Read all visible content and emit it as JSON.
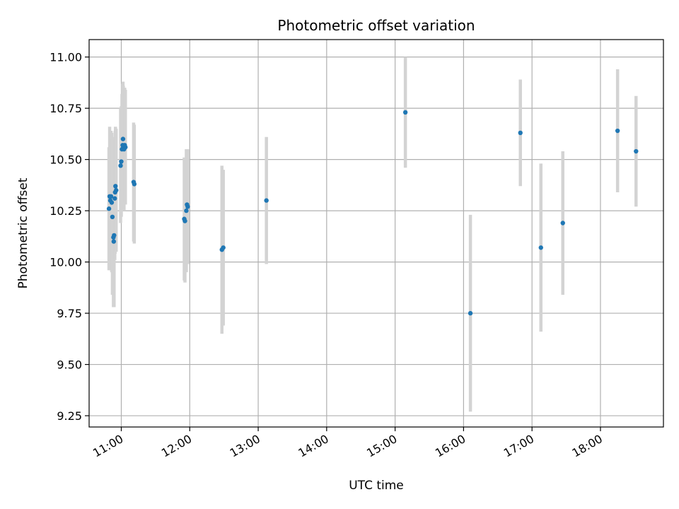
{
  "chart_data": {
    "type": "scatter",
    "title": "Photometric offset variation",
    "xlabel": "UTC time",
    "ylabel": "Photometric offset",
    "x_unit": "UTC hours",
    "xlim": [
      10.53,
      18.92
    ],
    "ylim": [
      9.195,
      11.085
    ],
    "grid": true,
    "legend": "none",
    "xticks": [
      {
        "value": 11,
        "label": "11:00"
      },
      {
        "value": 12,
        "label": "12:00"
      },
      {
        "value": 13,
        "label": "13:00"
      },
      {
        "value": 14,
        "label": "14:00"
      },
      {
        "value": 15,
        "label": "15:00"
      },
      {
        "value": 16,
        "label": "16:00"
      },
      {
        "value": 17,
        "label": "17:00"
      },
      {
        "value": 18,
        "label": "18:00"
      }
    ],
    "yticks": [
      {
        "value": 9.25,
        "label": "9.25"
      },
      {
        "value": 9.5,
        "label": "9.50"
      },
      {
        "value": 9.75,
        "label": "9.75"
      },
      {
        "value": 10.0,
        "label": "10.00"
      },
      {
        "value": 10.25,
        "label": "10.25"
      },
      {
        "value": 10.5,
        "label": "10.50"
      },
      {
        "value": 10.75,
        "label": "10.75"
      },
      {
        "value": 11.0,
        "label": "11.00"
      }
    ],
    "colors": {
      "point": "#1f77b4",
      "errorbar": "#d3d3d3",
      "grid": "#b0b0b0"
    },
    "points": [
      {
        "t": 10.82,
        "y": 10.26,
        "err": 0.3
      },
      {
        "t": 10.83,
        "y": 10.32,
        "err": 0.34
      },
      {
        "t": 10.84,
        "y": 10.3,
        "err": 0.34
      },
      {
        "t": 10.85,
        "y": 10.32,
        "err": 0.32
      },
      {
        "t": 10.86,
        "y": 10.29,
        "err": 0.34
      },
      {
        "t": 10.87,
        "y": 10.22,
        "err": 0.38
      },
      {
        "t": 10.885,
        "y": 10.12,
        "err": 0.34
      },
      {
        "t": 10.89,
        "y": 10.1,
        "err": 0.32
      },
      {
        "t": 10.895,
        "y": 10.13,
        "err": 0.35
      },
      {
        "t": 10.905,
        "y": 10.31,
        "err": 0.3
      },
      {
        "t": 10.91,
        "y": 10.34,
        "err": 0.3
      },
      {
        "t": 10.915,
        "y": 10.37,
        "err": 0.29
      },
      {
        "t": 10.925,
        "y": 10.35,
        "err": 0.3
      },
      {
        "t": 10.99,
        "y": 10.47,
        "err": 0.28
      },
      {
        "t": 11.0,
        "y": 10.49,
        "err": 0.27
      },
      {
        "t": 11.01,
        "y": 10.55,
        "err": 0.27
      },
      {
        "t": 11.02,
        "y": 10.57,
        "err": 0.3
      },
      {
        "t": 11.025,
        "y": 10.6,
        "err": 0.28
      },
      {
        "t": 11.03,
        "y": 10.56,
        "err": 0.3
      },
      {
        "t": 11.04,
        "y": 10.55,
        "err": 0.3
      },
      {
        "t": 11.05,
        "y": 10.57,
        "err": 0.28
      },
      {
        "t": 11.06,
        "y": 10.56,
        "err": 0.28
      },
      {
        "t": 11.18,
        "y": 10.39,
        "err": 0.29
      },
      {
        "t": 11.19,
        "y": 10.38,
        "err": 0.29
      },
      {
        "t": 11.92,
        "y": 10.21,
        "err": 0.3
      },
      {
        "t": 11.93,
        "y": 10.2,
        "err": 0.3
      },
      {
        "t": 11.95,
        "y": 10.25,
        "err": 0.3
      },
      {
        "t": 11.96,
        "y": 10.28,
        "err": 0.27
      },
      {
        "t": 11.97,
        "y": 10.27,
        "err": 0.28
      },
      {
        "t": 12.47,
        "y": 10.06,
        "err": 0.41
      },
      {
        "t": 12.49,
        "y": 10.07,
        "err": 0.38
      },
      {
        "t": 13.12,
        "y": 10.3,
        "err": 0.31
      },
      {
        "t": 15.15,
        "y": 10.73,
        "err": 0.27
      },
      {
        "t": 16.1,
        "y": 9.75,
        "err": 0.48
      },
      {
        "t": 16.83,
        "y": 10.63,
        "err": 0.26
      },
      {
        "t": 17.13,
        "y": 10.07,
        "err": 0.41
      },
      {
        "t": 17.45,
        "y": 10.19,
        "err": 0.35
      },
      {
        "t": 18.25,
        "y": 10.64,
        "err": 0.3
      },
      {
        "t": 18.52,
        "y": 10.54,
        "err": 0.27
      }
    ]
  }
}
